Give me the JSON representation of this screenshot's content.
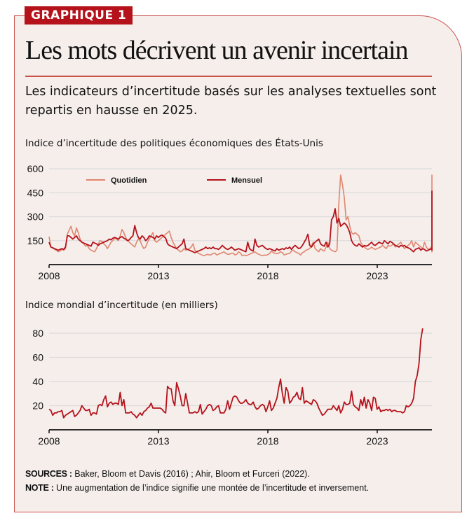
{
  "header": {
    "tag": "GRAPHIQUE 1",
    "title": "Les mots décrivent un avenir incertain",
    "subtitle": "Les indicateurs d’incertitude basés sur les analyses textuelles sont repartis en hausse en 2025."
  },
  "colors": {
    "accent": "#b5121b",
    "border": "#c9524a",
    "daily": "#e0866f",
    "monthly": "#b5121b",
    "background": "#f5eeeb",
    "grid": "#dcdcdc"
  },
  "footer": {
    "sources_label": "SOURCES :",
    "sources_text": " Baker, Bloom et Davis (2016) ; Ahir, Bloom et Furceri (2022).",
    "note_label": "NOTE :",
    "note_text": " Une augmentation de l’indice signifie une montée de l’incertitude et inversement."
  },
  "chart_data": [
    {
      "type": "line",
      "title": "Indice d’incertitude des politiques économiques des États-Unis",
      "xlabel": "",
      "ylabel": "",
      "xlim": [
        2008,
        2025.5
      ],
      "ylim": [
        0,
        600
      ],
      "yticks": [
        150,
        300,
        450,
        600
      ],
      "xticks": [
        2008,
        2013,
        2018,
        2023
      ],
      "grid": true,
      "legend": "top-left",
      "series": [
        {
          "name": "Quotidien",
          "color": "#e0866f",
          "x_start": 2008.0,
          "x_step": 0.0833,
          "values": [
            175,
            110,
            105,
            95,
            90,
            80,
            85,
            95,
            90,
            100,
            190,
            215,
            240,
            200,
            180,
            230,
            200,
            160,
            140,
            130,
            115,
            120,
            100,
            90,
            85,
            80,
            100,
            130,
            150,
            145,
            130,
            120,
            100,
            120,
            140,
            150,
            165,
            160,
            150,
            180,
            220,
            200,
            170,
            150,
            140,
            130,
            120,
            110,
            140,
            160,
            150,
            120,
            100,
            110,
            140,
            160,
            180,
            200,
            150,
            140,
            150,
            160,
            170,
            180,
            190,
            200,
            210,
            170,
            140,
            120,
            100,
            90,
            80,
            85,
            100,
            90,
            95,
            100,
            110,
            130,
            90,
            80,
            70,
            65,
            60,
            55,
            60,
            65,
            60,
            62,
            70,
            72,
            60,
            65,
            70,
            75,
            80,
            70,
            65,
            65,
            70,
            72,
            60,
            65,
            80,
            72,
            55,
            60,
            55,
            60,
            65,
            70,
            75,
            80,
            70,
            65,
            60,
            55,
            60,
            58,
            62,
            70,
            85,
            75,
            70,
            68,
            72,
            80,
            75,
            60,
            65,
            68,
            70,
            85,
            90,
            80,
            75,
            70,
            60,
            75,
            80,
            90,
            95,
            100,
            120,
            140,
            100,
            90,
            80,
            100,
            90,
            85,
            110,
            140,
            100,
            90,
            85,
            80,
            90,
            380,
            560,
            500,
            420,
            280,
            300,
            240,
            200,
            190,
            200,
            190,
            180,
            140,
            120,
            110,
            100,
            95,
            100,
            110,
            100,
            95,
            100,
            105,
            110,
            120,
            110,
            100,
            120,
            115,
            120,
            130,
            110,
            120,
            130,
            140,
            120,
            100,
            110,
            120,
            130,
            150,
            110,
            140,
            130,
            120,
            110,
            100,
            140,
            110,
            95,
            100,
            115,
            105,
            100,
            110,
            95,
            90,
            85,
            80,
            100,
            95,
            90,
            140,
            160,
            240,
            300,
            400,
            500,
            560,
            500,
            400
          ]
        },
        {
          "name": "Mensuel",
          "color": "#b5121b",
          "x_start": 2008.0,
          "x_step": 0.0833,
          "values": [
            140,
            110,
            105,
            100,
            95,
            90,
            95,
            100,
            95,
            110,
            180,
            180,
            170,
            160,
            170,
            180,
            160,
            150,
            140,
            135,
            130,
            125,
            120,
            115,
            140,
            135,
            130,
            120,
            130,
            135,
            140,
            145,
            150,
            160,
            155,
            165,
            170,
            165,
            160,
            170,
            175,
            165,
            160,
            150,
            155,
            170,
            180,
            245,
            200,
            170,
            160,
            180,
            170,
            150,
            160,
            180,
            175,
            170,
            160,
            180,
            170,
            180,
            185,
            175,
            165,
            130,
            120,
            115,
            110,
            105,
            100,
            110,
            120,
            130,
            160,
            100,
            95,
            90,
            85,
            80,
            75,
            80,
            85,
            90,
            95,
            100,
            110,
            100,
            105,
            100,
            110,
            100,
            100,
            95,
            105,
            120,
            110,
            100,
            95,
            100,
            110,
            100,
            90,
            95,
            100,
            95,
            90,
            85,
            80,
            140,
            100,
            90,
            85,
            160,
            120,
            110,
            115,
            120,
            110,
            100,
            95,
            100,
            95,
            90,
            85,
            100,
            90,
            95,
            100,
            95,
            105,
            100,
            110,
            95,
            110,
            120,
            110,
            100,
            105,
            120,
            140,
            160,
            190,
            120,
            110,
            130,
            140,
            150,
            160,
            130,
            120,
            115,
            140,
            110,
            130,
            280,
            300,
            350,
            260,
            290,
            240,
            250,
            260,
            250,
            230,
            200,
            150,
            130,
            120,
            115,
            130,
            120,
            110,
            120,
            115,
            120,
            130,
            140,
            125,
            120,
            130,
            140,
            135,
            130,
            150,
            140,
            130,
            145,
            140,
            130,
            120,
            115,
            110,
            120,
            115,
            120,
            110,
            105,
            100,
            90,
            80,
            95,
            100,
            105,
            90,
            100,
            95,
            85,
            90,
            95,
            100,
            95,
            100,
            95,
            90,
            95,
            100,
            160,
            200,
            220,
            260,
            300,
            460,
            350,
            255
          ]
        }
      ]
    },
    {
      "type": "line",
      "title": "Indice mondial d’incertitude  (en milliers)",
      "xlabel": "",
      "ylabel": "",
      "xlim": [
        2008,
        2025.5
      ],
      "ylim": [
        0,
        80
      ],
      "yticks": [
        20,
        40,
        60,
        80
      ],
      "xticks": [
        2008,
        2013,
        2018,
        2023
      ],
      "grid": true,
      "legend": "none",
      "series": [
        {
          "name": "Indice mondial d’incertitude",
          "color": "#b5121b",
          "x_start": 2008.0,
          "x_step": 0.0833,
          "values": [
            17,
            16,
            12,
            14,
            14,
            15,
            15,
            16,
            10,
            12,
            13,
            14,
            15,
            16,
            11,
            12,
            14,
            16,
            20,
            18,
            16,
            16,
            17,
            12,
            14,
            14,
            13,
            20,
            21,
            20,
            25,
            28,
            19,
            22,
            23,
            21,
            22,
            22,
            21,
            31,
            20,
            25,
            14,
            14,
            14,
            15,
            13,
            12,
            10,
            12,
            14,
            12,
            15,
            16,
            18,
            19,
            22,
            18,
            18,
            18,
            18,
            18,
            17,
            15,
            14,
            36,
            34,
            34,
            24,
            20,
            39,
            34,
            28,
            20,
            20,
            30,
            22,
            14,
            14,
            14,
            15,
            14,
            15,
            21,
            13,
            15,
            17,
            20,
            21,
            20,
            16,
            17,
            19,
            20,
            14,
            14,
            14,
            17,
            24,
            17,
            22,
            27,
            28,
            27,
            24,
            22,
            22,
            23,
            25,
            22,
            21,
            21,
            23,
            19,
            17,
            18,
            20,
            21,
            20,
            15,
            19,
            24,
            16,
            18,
            22,
            26,
            35,
            42,
            30,
            22,
            35,
            32,
            22,
            24,
            27,
            28,
            31,
            26,
            25,
            35,
            22,
            24,
            23,
            22,
            21,
            25,
            24,
            22,
            18,
            15,
            12,
            13,
            15,
            17,
            17,
            17,
            20,
            18,
            16,
            20,
            14,
            17,
            23,
            21,
            21,
            22,
            32,
            21,
            19,
            18,
            16,
            25,
            20,
            27,
            18,
            25,
            22,
            16,
            27,
            26,
            17,
            19,
            15,
            16,
            16,
            17,
            16,
            17,
            15,
            16,
            16,
            15,
            15,
            15,
            14,
            15,
            20,
            19,
            20,
            22,
            26,
            40,
            45,
            55,
            75,
            84
          ]
        }
      ]
    }
  ]
}
